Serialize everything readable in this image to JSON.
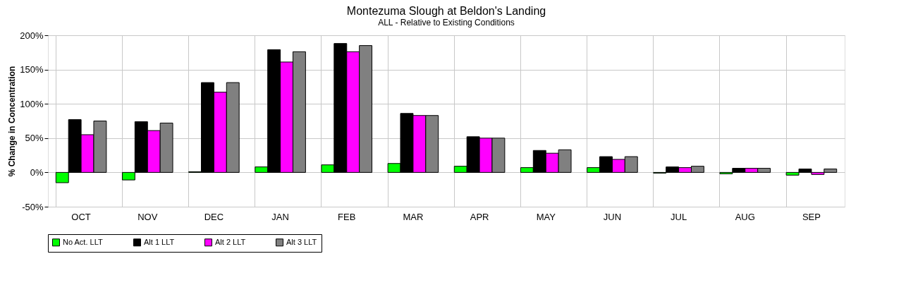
{
  "chart_data": {
    "type": "bar",
    "title": "Montezuma Slough at Beldon's Landing",
    "subtitle": "ALL - Relative to Existing Conditions",
    "ylabel": "% Change in Concentration",
    "categories": [
      "OCT",
      "NOV",
      "DEC",
      "JAN",
      "FEB",
      "MAR",
      "APR",
      "MAY",
      "JUN",
      "JUL",
      "AUG",
      "SEP"
    ],
    "series": [
      {
        "name": "No Act. LLT",
        "color": "#00ff00",
        "values": [
          -15,
          -11,
          1,
          8,
          11,
          13,
          9,
          7,
          7,
          -1,
          -2,
          -4
        ]
      },
      {
        "name": "Alt 1 LLT",
        "color": "#000000",
        "values": [
          77,
          74,
          131,
          179,
          188,
          86,
          52,
          32,
          23,
          8,
          6,
          5
        ]
      },
      {
        "name": "Alt 2 LLT",
        "color": "#ff00ff",
        "values": [
          55,
          61,
          117,
          161,
          176,
          83,
          50,
          28,
          19,
          7,
          6,
          -3
        ]
      },
      {
        "name": "Alt 3 LLT",
        "color": "#808080",
        "values": [
          75,
          72,
          131,
          176,
          185,
          83,
          50,
          33,
          23,
          9,
          6,
          5
        ]
      }
    ],
    "ylim": [
      -50,
      200
    ],
    "yticks": [
      {
        "value": -50,
        "label": "-50%"
      },
      {
        "value": 0,
        "label": "0%"
      },
      {
        "value": 50,
        "label": "50%"
      },
      {
        "value": 100,
        "label": "100%"
      },
      {
        "value": 150,
        "label": "150%"
      },
      {
        "value": 200,
        "label": "200%"
      }
    ],
    "grid": true,
    "legend": "bottom"
  }
}
